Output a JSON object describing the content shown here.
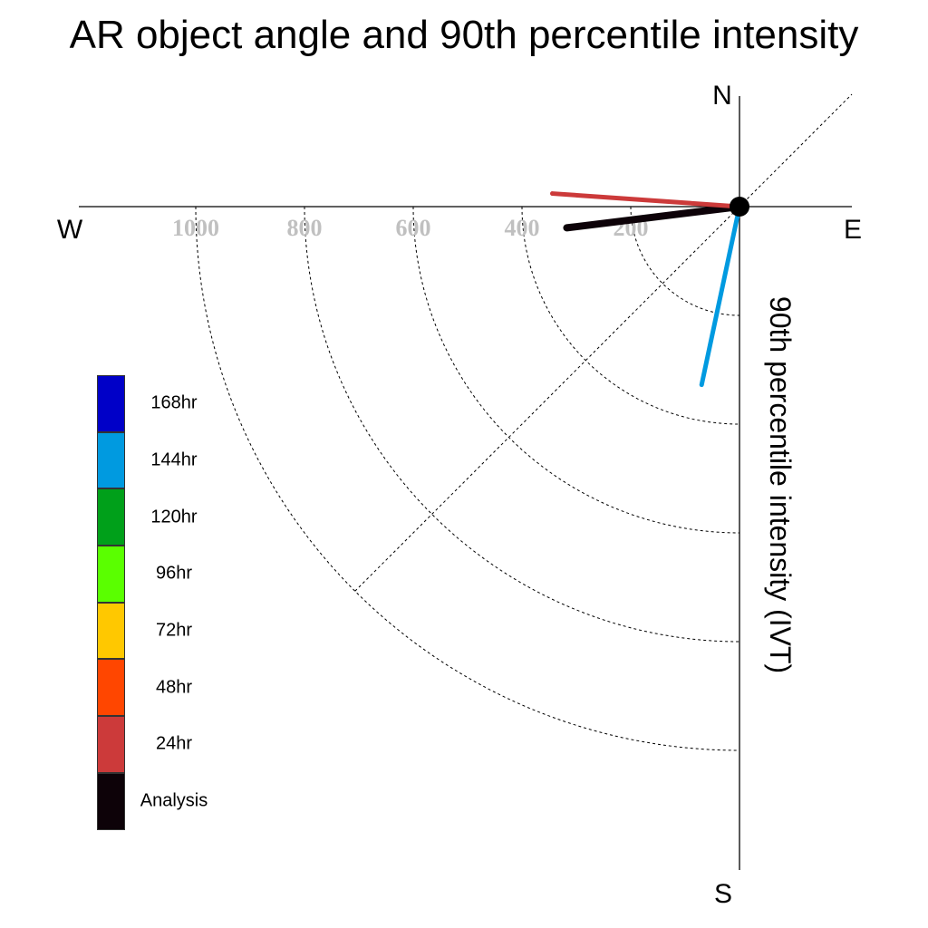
{
  "chart_data": {
    "type": "polar-line",
    "title": "AR object angle and 90th percentile intensity",
    "ylabel": "90th percentile intensity (IVT)",
    "compass": {
      "north": "N",
      "south": "S",
      "east": "E",
      "west": "W"
    },
    "rings": [
      {
        "value": 200,
        "label": "200"
      },
      {
        "value": 400,
        "label": "400"
      },
      {
        "value": 600,
        "label": "600"
      },
      {
        "value": 800,
        "label": "800"
      },
      {
        "value": 1000,
        "label": "1000"
      }
    ],
    "rmax": 1170,
    "grid": true,
    "series": [
      {
        "name": "Analysis",
        "angle_deg": 187,
        "intensity": 320,
        "color": "#0d0208",
        "width": 8
      },
      {
        "name": "24hr",
        "angle_deg": 176,
        "intensity": 345,
        "color": "#cc3a3a",
        "width": 5
      },
      {
        "name": "144hr",
        "angle_deg": 258,
        "intensity": 335,
        "color": "#009ae0",
        "width": 5
      }
    ],
    "legend": {
      "placement": "left",
      "items": [
        {
          "label": "168hr",
          "color": "#0000c8"
        },
        {
          "label": "144hr",
          "color": "#009ae0"
        },
        {
          "label": "120hr",
          "color": "#00a01a"
        },
        {
          "label": "96hr",
          "color": "#5aff00"
        },
        {
          "label": "72hr",
          "color": "#ffc800"
        },
        {
          "label": "48hr",
          "color": "#ff4600"
        },
        {
          "label": "24hr",
          "color": "#cc3a3a"
        },
        {
          "label": "Analysis",
          "color": "#0d0208"
        }
      ]
    }
  }
}
